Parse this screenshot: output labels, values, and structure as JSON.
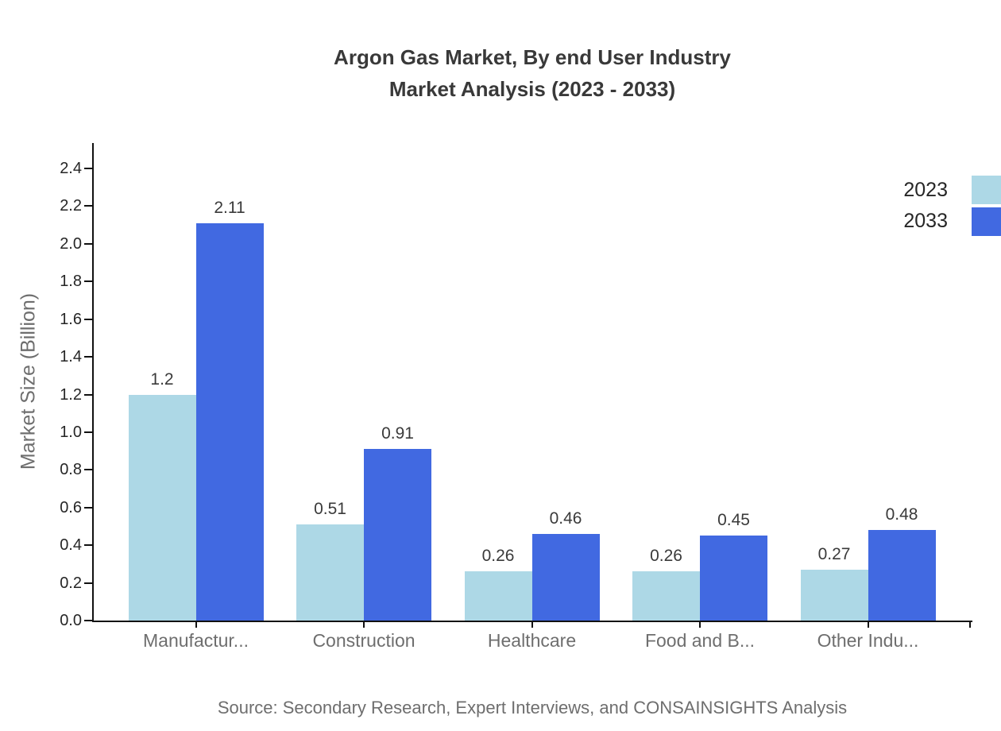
{
  "title": {
    "line1": "Argon Gas Market, By end User Industry",
    "line2": "Market Analysis (2023 - 2033)"
  },
  "chart_data": {
    "type": "bar",
    "categories": [
      "Manufactur...",
      "Construction",
      "Healthcare",
      "Food and B...",
      "Other Indu..."
    ],
    "series": [
      {
        "name": "2023",
        "color": "#ADD8E6",
        "values": [
          1.2,
          0.51,
          0.26,
          0.26,
          0.27
        ]
      },
      {
        "name": "2033",
        "color": "#4169E1",
        "values": [
          2.11,
          0.91,
          0.46,
          0.45,
          0.48
        ]
      }
    ],
    "title": "Argon Gas Market, By end User Industry Market Analysis (2023 - 2033)",
    "xlabel": "",
    "ylabel": "Market Size (Billion)",
    "ylim": [
      0.0,
      2.4
    ],
    "ytick_step": 0.2,
    "grid": false,
    "legend_position": "top-right",
    "value_labels": true
  },
  "footer": {
    "source": "Source: Secondary Research, Expert Interviews, and CONSAINSIGHTS Analysis"
  }
}
